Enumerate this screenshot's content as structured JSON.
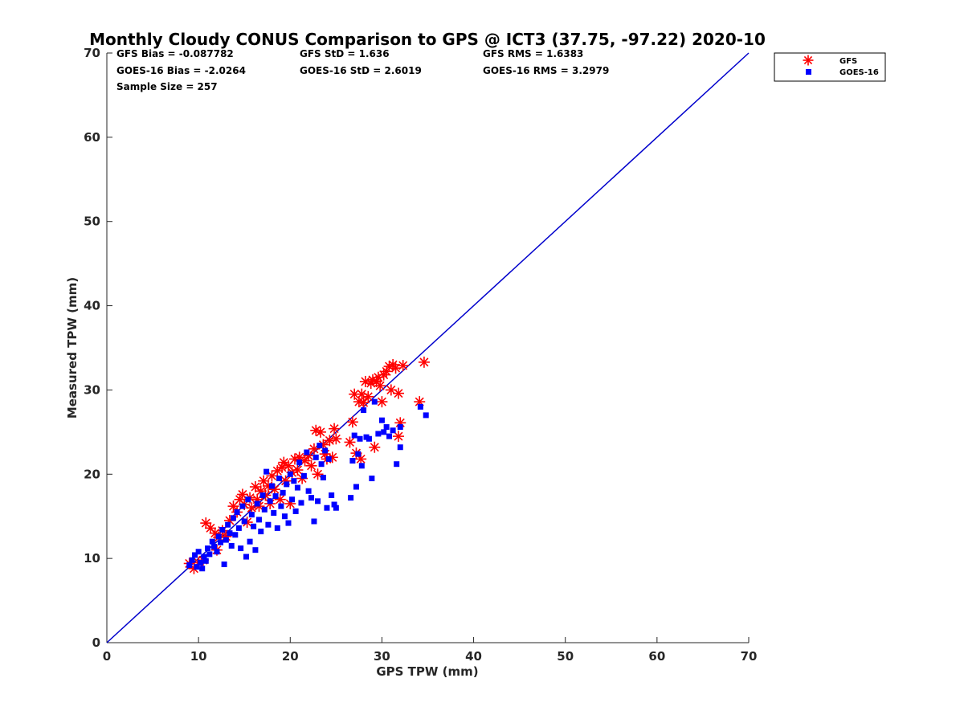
{
  "chart_data": {
    "type": "scatter",
    "title": "Monthly Cloudy CONUS Comparison to GPS @ ICT3 (37.75, -97.22) 2020-10",
    "xlabel": "GPS TPW (mm)",
    "ylabel": "Measured TPW (mm)",
    "xlim": [
      0,
      70
    ],
    "ylim": [
      0,
      70
    ],
    "xticks": [
      "0",
      "10",
      "20",
      "30",
      "40",
      "50",
      "60",
      "70"
    ],
    "yticks": [
      "0",
      "10",
      "20",
      "30",
      "40",
      "50",
      "60",
      "70"
    ],
    "grid": false,
    "legend_position": "top-right outside",
    "stats": {
      "gfs_bias": "GFS Bias = -0.087782",
      "gfs_std": "GFS StD = 1.636",
      "gfs_rms": "GFS RMS = 1.6383",
      "goes_bias": "GOES-16 Bias = -2.0264",
      "goes_std": "GOES-16 StD = 2.6019",
      "goes_rms": "GOES-16 RMS = 3.2979",
      "sample_size": "Sample Size = 257"
    },
    "reference_line": {
      "x": [
        0,
        70
      ],
      "y": [
        0,
        70
      ],
      "color": "#0000cc"
    },
    "series": [
      {
        "name": "GFS",
        "marker": "asterisk",
        "color": "#ff0000",
        "points": [
          [
            9.0,
            9.4
          ],
          [
            9.5,
            8.8
          ],
          [
            10.0,
            9.5
          ],
          [
            10.5,
            9.8
          ],
          [
            10.8,
            14.2
          ],
          [
            11.3,
            13.6
          ],
          [
            11.8,
            13.0
          ],
          [
            12.2,
            12.5
          ],
          [
            12.0,
            11.0
          ],
          [
            12.6,
            13.3
          ],
          [
            13.0,
            12.6
          ],
          [
            13.4,
            14.5
          ],
          [
            13.8,
            16.2
          ],
          [
            14.2,
            15.5
          ],
          [
            14.5,
            17.0
          ],
          [
            14.8,
            17.6
          ],
          [
            15.0,
            16.4
          ],
          [
            15.3,
            14.3
          ],
          [
            15.6,
            17.2
          ],
          [
            15.8,
            16.0
          ],
          [
            16.2,
            18.5
          ],
          [
            16.4,
            17.0
          ],
          [
            16.6,
            16.2
          ],
          [
            16.8,
            18.0
          ],
          [
            17.1,
            19.2
          ],
          [
            17.3,
            17.5
          ],
          [
            17.6,
            18.6
          ],
          [
            17.8,
            16.5
          ],
          [
            18.0,
            19.8
          ],
          [
            18.3,
            18.2
          ],
          [
            18.6,
            20.4
          ],
          [
            18.9,
            17.0
          ],
          [
            19.1,
            20.8
          ],
          [
            19.3,
            21.4
          ],
          [
            19.5,
            19.2
          ],
          [
            19.8,
            21.0
          ],
          [
            20.0,
            16.5
          ],
          [
            20.2,
            20.2
          ],
          [
            20.5,
            21.8
          ],
          [
            20.8,
            20.5
          ],
          [
            21.0,
            22.0
          ],
          [
            21.3,
            19.5
          ],
          [
            21.6,
            21.6
          ],
          [
            22.0,
            22.2
          ],
          [
            22.3,
            21.0
          ],
          [
            22.6,
            23.0
          ],
          [
            22.8,
            25.2
          ],
          [
            23.0,
            20.0
          ],
          [
            23.3,
            25.0
          ],
          [
            23.6,
            23.5
          ],
          [
            23.8,
            22.4
          ],
          [
            24.0,
            21.8
          ],
          [
            24.3,
            24.0
          ],
          [
            24.6,
            22.0
          ],
          [
            24.8,
            25.4
          ],
          [
            25.0,
            24.2
          ],
          [
            26.5,
            23.8
          ],
          [
            26.8,
            26.2
          ],
          [
            27.0,
            29.5
          ],
          [
            27.2,
            22.5
          ],
          [
            27.5,
            28.6
          ],
          [
            27.7,
            21.8
          ],
          [
            27.8,
            29.5
          ],
          [
            28.0,
            28.5
          ],
          [
            28.2,
            31.0
          ],
          [
            28.5,
            29.2
          ],
          [
            28.8,
            30.8
          ],
          [
            29.0,
            31.2
          ],
          [
            29.2,
            23.2
          ],
          [
            29.4,
            31.0
          ],
          [
            29.6,
            31.5
          ],
          [
            29.8,
            30.5
          ],
          [
            30.0,
            28.6
          ],
          [
            30.2,
            31.8
          ],
          [
            30.5,
            32.2
          ],
          [
            30.8,
            32.8
          ],
          [
            31.0,
            30.0
          ],
          [
            31.2,
            33.0
          ],
          [
            31.5,
            32.6
          ],
          [
            31.8,
            24.5
          ],
          [
            31.8,
            29.6
          ],
          [
            32.0,
            26.1
          ],
          [
            32.3,
            32.9
          ],
          [
            34.1,
            28.6
          ],
          [
            34.6,
            33.3
          ]
        ]
      },
      {
        "name": "GOES-16",
        "marker": "square",
        "color": "#0000ff",
        "points": [
          [
            9.0,
            9.2
          ],
          [
            9.3,
            9.8
          ],
          [
            9.6,
            10.4
          ],
          [
            9.8,
            9.0
          ],
          [
            10.0,
            10.8
          ],
          [
            10.2,
            9.5
          ],
          [
            10.4,
            8.8
          ],
          [
            10.6,
            10.2
          ],
          [
            10.8,
            9.7
          ],
          [
            11.0,
            11.2
          ],
          [
            11.2,
            10.5
          ],
          [
            11.5,
            12.0
          ],
          [
            11.7,
            11.4
          ],
          [
            12.0,
            10.8
          ],
          [
            12.2,
            12.6
          ],
          [
            12.4,
            11.9
          ],
          [
            12.6,
            13.4
          ],
          [
            12.8,
            9.3
          ],
          [
            13.0,
            12.2
          ],
          [
            13.2,
            14.0
          ],
          [
            13.4,
            13.0
          ],
          [
            13.6,
            11.5
          ],
          [
            13.8,
            14.8
          ],
          [
            14.0,
            12.8
          ],
          [
            14.2,
            15.5
          ],
          [
            14.4,
            13.6
          ],
          [
            14.6,
            11.2
          ],
          [
            14.8,
            16.2
          ],
          [
            15.0,
            14.4
          ],
          [
            15.2,
            10.2
          ],
          [
            15.4,
            17.0
          ],
          [
            15.6,
            12.0
          ],
          [
            15.8,
            15.2
          ],
          [
            16.0,
            13.8
          ],
          [
            16.2,
            11.0
          ],
          [
            16.4,
            16.5
          ],
          [
            16.6,
            14.6
          ],
          [
            16.8,
            13.2
          ],
          [
            17.0,
            17.5
          ],
          [
            17.2,
            15.8
          ],
          [
            17.4,
            20.3
          ],
          [
            17.6,
            14.0
          ],
          [
            17.8,
            16.8
          ],
          [
            18.0,
            18.6
          ],
          [
            18.2,
            15.4
          ],
          [
            18.4,
            17.4
          ],
          [
            18.6,
            13.6
          ],
          [
            18.8,
            19.5
          ],
          [
            19.0,
            16.2
          ],
          [
            19.2,
            17.8
          ],
          [
            19.4,
            15.0
          ],
          [
            19.6,
            18.8
          ],
          [
            19.8,
            14.2
          ],
          [
            20.0,
            20.0
          ],
          [
            20.2,
            17.0
          ],
          [
            20.4,
            19.2
          ],
          [
            20.6,
            15.6
          ],
          [
            20.8,
            18.4
          ],
          [
            21.0,
            21.4
          ],
          [
            21.2,
            16.6
          ],
          [
            21.5,
            19.8
          ],
          [
            21.8,
            22.6
          ],
          [
            22.0,
            18.0
          ],
          [
            22.3,
            17.2
          ],
          [
            22.6,
            14.4
          ],
          [
            22.8,
            22.0
          ],
          [
            23.0,
            16.8
          ],
          [
            23.2,
            23.4
          ],
          [
            23.4,
            21.2
          ],
          [
            23.6,
            19.6
          ],
          [
            23.8,
            22.8
          ],
          [
            24.0,
            16.0
          ],
          [
            24.2,
            21.8
          ],
          [
            24.5,
            17.5
          ],
          [
            24.8,
            16.4
          ],
          [
            25.0,
            16.0
          ],
          [
            26.6,
            17.2
          ],
          [
            26.8,
            21.6
          ],
          [
            27.0,
            24.6
          ],
          [
            27.2,
            18.5
          ],
          [
            27.4,
            22.4
          ],
          [
            27.6,
            24.2
          ],
          [
            27.8,
            21.0
          ],
          [
            28.0,
            27.6
          ],
          [
            28.3,
            24.4
          ],
          [
            28.6,
            24.2
          ],
          [
            28.9,
            19.5
          ],
          [
            29.2,
            28.6
          ],
          [
            29.6,
            24.8
          ],
          [
            30.0,
            26.4
          ],
          [
            30.2,
            25.0
          ],
          [
            30.5,
            25.6
          ],
          [
            30.8,
            24.5
          ],
          [
            31.2,
            25.2
          ],
          [
            31.6,
            21.2
          ],
          [
            32.0,
            23.2
          ],
          [
            32.0,
            25.6
          ],
          [
            34.2,
            28.0
          ],
          [
            34.8,
            27.0
          ]
        ]
      }
    ]
  }
}
